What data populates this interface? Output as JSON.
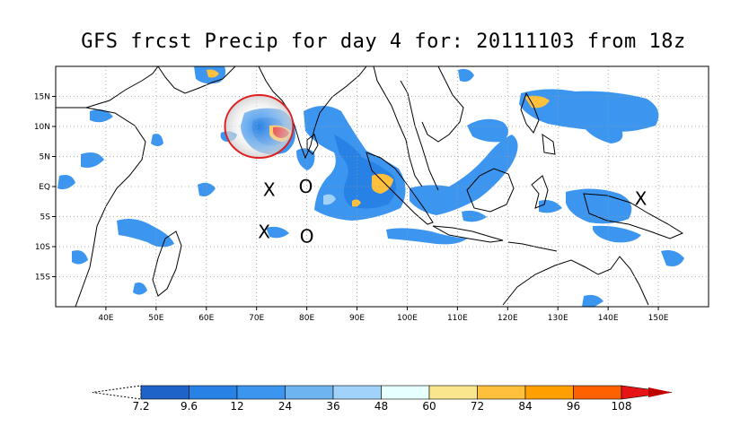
{
  "title": "GFS frcst Precip for day 4 for: 20111103 from 18z",
  "map": {
    "lon_range": [
      30,
      160
    ],
    "lat_range": [
      -20,
      20
    ],
    "x_ticks": [
      "40E",
      "50E",
      "60E",
      "70E",
      "80E",
      "90E",
      "100E",
      "110E",
      "120E",
      "130E",
      "140E",
      "150E"
    ],
    "y_ticks": [
      "15N",
      "10N",
      "5N",
      "EQ",
      "5S",
      "10S",
      "15S"
    ],
    "grid": "dotted",
    "markers": [
      {
        "symbol": "X",
        "lon": 72.5,
        "lat": -0.5
      },
      {
        "symbol": "O",
        "lon": 79.8,
        "lat": 0
      },
      {
        "symbol": "X",
        "lon": 71.5,
        "lat": -7.5
      },
      {
        "symbol": "O",
        "lon": 80,
        "lat": -8.3
      },
      {
        "symbol": "X",
        "lon": 146.5,
        "lat": -2
      }
    ],
    "highlight_circle": {
      "lon": 70.5,
      "lat": 10,
      "color": "#e02020"
    }
  },
  "colorbar": {
    "labels": [
      "7.2",
      "9.6",
      "12",
      "24",
      "36",
      "48",
      "60",
      "72",
      "84",
      "96",
      "108"
    ],
    "colors": [
      "#1e64c8",
      "#2882e6",
      "#3c96f0",
      "#6eb4f0",
      "#a0d2fa",
      "#e6ffff",
      "#fae68c",
      "#ffc03c",
      "#ffa000",
      "#ff6000",
      "#e61414",
      "#c00000"
    ]
  }
}
